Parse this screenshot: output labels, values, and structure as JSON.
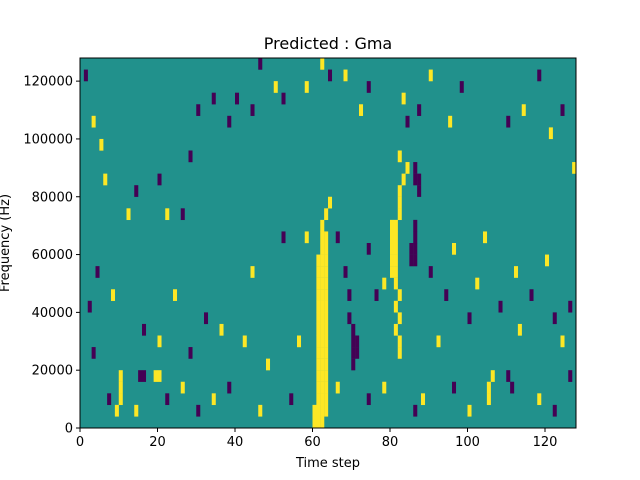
{
  "chart_data": {
    "type": "heatmap",
    "title": "Predicted : Gma",
    "xlabel": "Time step",
    "ylabel": "Frequency (Hz)",
    "xlim": [
      0,
      128
    ],
    "ylim": [
      0,
      128000
    ],
    "x_ticks": [
      0,
      20,
      40,
      60,
      80,
      100,
      120
    ],
    "y_ticks": [
      0,
      20000,
      40000,
      60000,
      80000,
      100000,
      120000
    ],
    "grid": false,
    "legend": "none",
    "colormap": {
      "low": "#440154",
      "mid": "#21918c",
      "high": "#fde725"
    },
    "background_value": 0,
    "cells": [
      {
        "x": 0,
        "y": 0,
        "v": 0
      },
      {
        "x": 60,
        "y": 0,
        "v": 1
      },
      {
        "x": 61,
        "y": 0,
        "v": 1
      },
      {
        "x": 62,
        "y": 0,
        "v": 1
      },
      {
        "x": 60,
        "y": 4000,
        "v": 1
      },
      {
        "x": 61,
        "y": 4000,
        "v": 1
      },
      {
        "x": 62,
        "y": 4000,
        "v": 1
      },
      {
        "x": 63,
        "y": 4000,
        "v": 1
      },
      {
        "x": 61,
        "y": 8000,
        "v": 1
      },
      {
        "x": 62,
        "y": 8000,
        "v": 1
      },
      {
        "x": 63,
        "y": 8000,
        "v": 1
      },
      {
        "x": 61,
        "y": 12000,
        "v": 1
      },
      {
        "x": 62,
        "y": 12000,
        "v": 1
      },
      {
        "x": 63,
        "y": 12000,
        "v": 1
      },
      {
        "x": 61,
        "y": 16000,
        "v": 1
      },
      {
        "x": 62,
        "y": 16000,
        "v": 1
      },
      {
        "x": 63,
        "y": 16000,
        "v": 1
      },
      {
        "x": 61,
        "y": 20000,
        "v": 1
      },
      {
        "x": 62,
        "y": 20000,
        "v": 1
      },
      {
        "x": 63,
        "y": 20000,
        "v": 1
      },
      {
        "x": 61,
        "y": 24000,
        "v": 1
      },
      {
        "x": 62,
        "y": 24000,
        "v": 1
      },
      {
        "x": 63,
        "y": 24000,
        "v": 1
      },
      {
        "x": 61,
        "y": 28000,
        "v": 1
      },
      {
        "x": 62,
        "y": 28000,
        "v": 1
      },
      {
        "x": 63,
        "y": 28000,
        "v": 1
      },
      {
        "x": 61,
        "y": 32000,
        "v": 1
      },
      {
        "x": 62,
        "y": 32000,
        "v": 1
      },
      {
        "x": 63,
        "y": 32000,
        "v": 1
      },
      {
        "x": 61,
        "y": 36000,
        "v": 1
      },
      {
        "x": 62,
        "y": 36000,
        "v": 1
      },
      {
        "x": 63,
        "y": 36000,
        "v": 1
      },
      {
        "x": 61,
        "y": 40000,
        "v": 1
      },
      {
        "x": 62,
        "y": 40000,
        "v": 1
      },
      {
        "x": 63,
        "y": 40000,
        "v": 1
      },
      {
        "x": 61,
        "y": 44000,
        "v": 1
      },
      {
        "x": 62,
        "y": 44000,
        "v": 1
      },
      {
        "x": 63,
        "y": 44000,
        "v": 1
      },
      {
        "x": 61,
        "y": 48000,
        "v": 1
      },
      {
        "x": 62,
        "y": 48000,
        "v": 1
      },
      {
        "x": 63,
        "y": 48000,
        "v": 1
      },
      {
        "x": 61,
        "y": 52000,
        "v": 1
      },
      {
        "x": 62,
        "y": 52000,
        "v": 1
      },
      {
        "x": 63,
        "y": 52000,
        "v": 1
      },
      {
        "x": 61,
        "y": 56000,
        "v": 1
      },
      {
        "x": 62,
        "y": 56000,
        "v": 1
      },
      {
        "x": 63,
        "y": 56000,
        "v": 1
      },
      {
        "x": 62,
        "y": 60000,
        "v": 1
      },
      {
        "x": 63,
        "y": 60000,
        "v": 1
      },
      {
        "x": 62,
        "y": 64000,
        "v": 1
      },
      {
        "x": 63,
        "y": 64000,
        "v": 1
      },
      {
        "x": 62,
        "y": 68000,
        "v": 1
      },
      {
        "x": 63,
        "y": 72000,
        "v": 1
      },
      {
        "x": 64,
        "y": 76000,
        "v": 1
      },
      {
        "x": 82,
        "y": 24000,
        "v": 1
      },
      {
        "x": 82,
        "y": 28000,
        "v": 1
      },
      {
        "x": 81,
        "y": 32000,
        "v": 1
      },
      {
        "x": 82,
        "y": 36000,
        "v": 1
      },
      {
        "x": 81,
        "y": 40000,
        "v": 1
      },
      {
        "x": 82,
        "y": 44000,
        "v": 1
      },
      {
        "x": 81,
        "y": 48000,
        "v": 1
      },
      {
        "x": 80,
        "y": 52000,
        "v": 1
      },
      {
        "x": 81,
        "y": 52000,
        "v": 1
      },
      {
        "x": 80,
        "y": 56000,
        "v": 1
      },
      {
        "x": 81,
        "y": 56000,
        "v": 1
      },
      {
        "x": 80,
        "y": 60000,
        "v": 1
      },
      {
        "x": 81,
        "y": 60000,
        "v": 1
      },
      {
        "x": 80,
        "y": 64000,
        "v": 1
      },
      {
        "x": 81,
        "y": 64000,
        "v": 1
      },
      {
        "x": 80,
        "y": 68000,
        "v": 1
      },
      {
        "x": 81,
        "y": 68000,
        "v": 1
      },
      {
        "x": 82,
        "y": 72000,
        "v": 1
      },
      {
        "x": 82,
        "y": 76000,
        "v": 1
      },
      {
        "x": 82,
        "y": 80000,
        "v": 1
      },
      {
        "x": 83,
        "y": 84000,
        "v": 1
      },
      {
        "x": 84,
        "y": 88000,
        "v": 1
      },
      {
        "x": 82,
        "y": 92000,
        "v": 1
      },
      {
        "x": 85,
        "y": 56000,
        "v": -1
      },
      {
        "x": 86,
        "y": 56000,
        "v": -1
      },
      {
        "x": 85,
        "y": 60000,
        "v": -1
      },
      {
        "x": 86,
        "y": 60000,
        "v": -1
      },
      {
        "x": 86,
        "y": 64000,
        "v": -1
      },
      {
        "x": 86,
        "y": 68000,
        "v": -1
      },
      {
        "x": 87,
        "y": 80000,
        "v": -1
      },
      {
        "x": 86,
        "y": 84000,
        "v": -1
      },
      {
        "x": 87,
        "y": 84000,
        "v": -1
      },
      {
        "x": 86,
        "y": 88000,
        "v": -1
      },
      {
        "x": 87,
        "y": 108000,
        "v": -1
      },
      {
        "x": 70,
        "y": 20000,
        "v": -1
      },
      {
        "x": 70,
        "y": 24000,
        "v": -1
      },
      {
        "x": 71,
        "y": 24000,
        "v": -1
      },
      {
        "x": 70,
        "y": 28000,
        "v": -1
      },
      {
        "x": 71,
        "y": 28000,
        "v": -1
      },
      {
        "x": 70,
        "y": 32000,
        "v": -1
      },
      {
        "x": 69,
        "y": 36000,
        "v": -1
      },
      {
        "x": 69,
        "y": 44000,
        "v": -1
      },
      {
        "x": 68,
        "y": 52000,
        "v": -1
      },
      {
        "x": 9,
        "y": 4000,
        "v": 1
      },
      {
        "x": 10,
        "y": 8000,
        "v": 1
      },
      {
        "x": 10,
        "y": 12000,
        "v": 1
      },
      {
        "x": 10,
        "y": 16000,
        "v": 1
      },
      {
        "x": 15,
        "y": 16000,
        "v": -1
      },
      {
        "x": 16,
        "y": 16000,
        "v": -1
      },
      {
        "x": 19,
        "y": 16000,
        "v": 1
      },
      {
        "x": 20,
        "y": 16000,
        "v": 1
      },
      {
        "x": 105,
        "y": 8000,
        "v": 1
      },
      {
        "x": 105,
        "y": 12000,
        "v": 1
      },
      {
        "x": 106,
        "y": 16000,
        "v": 1
      },
      {
        "x": 110,
        "y": 16000,
        "v": -1
      },
      {
        "x": 111,
        "y": 12000,
        "v": -1
      },
      {
        "x": 113,
        "y": 32000,
        "v": 1
      },
      {
        "x": 1,
        "y": 120000,
        "v": -1
      },
      {
        "x": 3,
        "y": 104000,
        "v": 1
      },
      {
        "x": 5,
        "y": 96000,
        "v": 1
      },
      {
        "x": 6,
        "y": 84000,
        "v": 1
      },
      {
        "x": 12,
        "y": 72000,
        "v": 1
      },
      {
        "x": 14,
        "y": 80000,
        "v": -1
      },
      {
        "x": 20,
        "y": 84000,
        "v": -1
      },
      {
        "x": 22,
        "y": 72000,
        "v": 1
      },
      {
        "x": 26,
        "y": 72000,
        "v": -1
      },
      {
        "x": 28,
        "y": 92000,
        "v": -1
      },
      {
        "x": 30,
        "y": 108000,
        "v": -1
      },
      {
        "x": 34,
        "y": 112000,
        "v": -1
      },
      {
        "x": 38,
        "y": 104000,
        "v": -1
      },
      {
        "x": 40,
        "y": 112000,
        "v": -1
      },
      {
        "x": 44,
        "y": 108000,
        "v": -1
      },
      {
        "x": 46,
        "y": 124000,
        "v": -1
      },
      {
        "x": 50,
        "y": 116000,
        "v": 1
      },
      {
        "x": 52,
        "y": 112000,
        "v": -1
      },
      {
        "x": 58,
        "y": 116000,
        "v": 1
      },
      {
        "x": 62,
        "y": 124000,
        "v": 1
      },
      {
        "x": 64,
        "y": 120000,
        "v": -1
      },
      {
        "x": 68,
        "y": 120000,
        "v": 1
      },
      {
        "x": 72,
        "y": 108000,
        "v": 1
      },
      {
        "x": 74,
        "y": 116000,
        "v": -1
      },
      {
        "x": 83,
        "y": 112000,
        "v": 1
      },
      {
        "x": 84,
        "y": 104000,
        "v": -1
      },
      {
        "x": 90,
        "y": 120000,
        "v": 1
      },
      {
        "x": 95,
        "y": 104000,
        "v": 1
      },
      {
        "x": 98,
        "y": 116000,
        "v": -1
      },
      {
        "x": 110,
        "y": 104000,
        "v": -1
      },
      {
        "x": 114,
        "y": 108000,
        "v": 1
      },
      {
        "x": 118,
        "y": 120000,
        "v": -1
      },
      {
        "x": 121,
        "y": 100000,
        "v": 1
      },
      {
        "x": 124,
        "y": 108000,
        "v": -1
      },
      {
        "x": 127,
        "y": 88000,
        "v": 1
      },
      {
        "x": 2,
        "y": 40000,
        "v": -1
      },
      {
        "x": 4,
        "y": 52000,
        "v": -1
      },
      {
        "x": 8,
        "y": 44000,
        "v": 1
      },
      {
        "x": 16,
        "y": 32000,
        "v": -1
      },
      {
        "x": 20,
        "y": 28000,
        "v": 1
      },
      {
        "x": 24,
        "y": 44000,
        "v": 1
      },
      {
        "x": 28,
        "y": 24000,
        "v": -1
      },
      {
        "x": 32,
        "y": 36000,
        "v": -1
      },
      {
        "x": 36,
        "y": 32000,
        "v": 1
      },
      {
        "x": 42,
        "y": 28000,
        "v": 1
      },
      {
        "x": 44,
        "y": 52000,
        "v": 1
      },
      {
        "x": 48,
        "y": 20000,
        "v": 1
      },
      {
        "x": 52,
        "y": 64000,
        "v": -1
      },
      {
        "x": 56,
        "y": 28000,
        "v": 1
      },
      {
        "x": 58,
        "y": 64000,
        "v": 1
      },
      {
        "x": 66,
        "y": 64000,
        "v": -1
      },
      {
        "x": 74,
        "y": 60000,
        "v": -1
      },
      {
        "x": 76,
        "y": 44000,
        "v": -1
      },
      {
        "x": 78,
        "y": 48000,
        "v": 1
      },
      {
        "x": 90,
        "y": 52000,
        "v": -1
      },
      {
        "x": 92,
        "y": 28000,
        "v": 1
      },
      {
        "x": 94,
        "y": 44000,
        "v": -1
      },
      {
        "x": 96,
        "y": 60000,
        "v": 1
      },
      {
        "x": 100,
        "y": 36000,
        "v": -1
      },
      {
        "x": 102,
        "y": 48000,
        "v": 1
      },
      {
        "x": 104,
        "y": 64000,
        "v": 1
      },
      {
        "x": 108,
        "y": 40000,
        "v": -1
      },
      {
        "x": 112,
        "y": 52000,
        "v": 1
      },
      {
        "x": 116,
        "y": 44000,
        "v": -1
      },
      {
        "x": 120,
        "y": 56000,
        "v": 1
      },
      {
        "x": 122,
        "y": 36000,
        "v": -1
      },
      {
        "x": 124,
        "y": 28000,
        "v": 1
      },
      {
        "x": 126,
        "y": 40000,
        "v": -1
      },
      {
        "x": 3,
        "y": 24000,
        "v": -1
      },
      {
        "x": 7,
        "y": 8000,
        "v": -1
      },
      {
        "x": 14,
        "y": 4000,
        "v": 1
      },
      {
        "x": 22,
        "y": 8000,
        "v": -1
      },
      {
        "x": 26,
        "y": 12000,
        "v": 1
      },
      {
        "x": 30,
        "y": 4000,
        "v": -1
      },
      {
        "x": 34,
        "y": 8000,
        "v": 1
      },
      {
        "x": 38,
        "y": 12000,
        "v": -1
      },
      {
        "x": 46,
        "y": 4000,
        "v": 1
      },
      {
        "x": 54,
        "y": 8000,
        "v": -1
      },
      {
        "x": 66,
        "y": 12000,
        "v": 1
      },
      {
        "x": 74,
        "y": 8000,
        "v": -1
      },
      {
        "x": 78,
        "y": 12000,
        "v": 1
      },
      {
        "x": 86,
        "y": 4000,
        "v": -1
      },
      {
        "x": 88,
        "y": 8000,
        "v": 1
      },
      {
        "x": 96,
        "y": 12000,
        "v": -1
      },
      {
        "x": 100,
        "y": 4000,
        "v": 1
      },
      {
        "x": 118,
        "y": 8000,
        "v": 1
      },
      {
        "x": 122,
        "y": 4000,
        "v": -1
      },
      {
        "x": 126,
        "y": 16000,
        "v": -1
      }
    ]
  }
}
